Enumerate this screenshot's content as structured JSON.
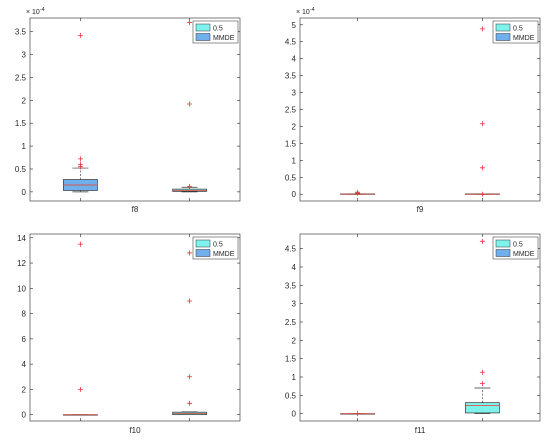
{
  "chart_data": [
    {
      "type": "box",
      "xlabel": "f8",
      "exponent": "× 10^{-4}",
      "ylim": [
        -0.2,
        3.8
      ],
      "yticks": [
        0,
        0.5,
        1,
        1.5,
        2,
        2.5,
        3,
        3.5
      ],
      "ytick_labels": [
        "0",
        "0.5",
        "1",
        "1.5",
        "2",
        "2.5",
        "3",
        "3.5"
      ],
      "legend": [
        {
          "name": "0.5",
          "color": "#7ff2ec"
        },
        {
          "name": "MMDE",
          "color": "#6fb0ec"
        }
      ],
      "boxes": [
        {
          "name": "MMDE",
          "color": "#6fb0ec",
          "q1": 0.03,
          "median": 0.15,
          "q3": 0.27,
          "wmin": 0.0,
          "wmax": 0.52,
          "outliers": [
            0.55,
            0.6,
            0.72,
            3.42
          ]
        },
        {
          "name": "0.5",
          "color": "#7ff2ec",
          "q1": 0.01,
          "median": 0.03,
          "q3": 0.06,
          "wmin": 0.0,
          "wmax": 0.1,
          "outliers": [
            0.12,
            1.92,
            3.7
          ]
        }
      ]
    },
    {
      "type": "box",
      "xlabel": "f9",
      "exponent": "× 10^{-4}",
      "ylim": [
        -0.2,
        5.2
      ],
      "yticks": [
        0,
        0.5,
        1,
        1.5,
        2,
        2.5,
        3,
        3.5,
        4,
        4.5,
        5
      ],
      "ytick_labels": [
        "0",
        "0.5",
        "1",
        "1.5",
        "2",
        "2.5",
        "3",
        "3.5",
        "4",
        "4.5",
        "5"
      ],
      "legend": [
        {
          "name": "0.5",
          "color": "#7ff2ec"
        },
        {
          "name": "MMDE",
          "color": "#6fb0ec"
        }
      ],
      "boxes": [
        {
          "name": "MMDE",
          "color": "#6fb0ec",
          "q1": 0.0,
          "median": 0.0,
          "q3": 0.01,
          "wmin": 0.0,
          "wmax": 0.01,
          "outliers": [
            0.03,
            0.06
          ]
        },
        {
          "name": "0.5",
          "color": "#7ff2ec",
          "q1": 0.0,
          "median": 0.0,
          "q3": 0.01,
          "wmin": 0.0,
          "wmax": 0.01,
          "outliers": [
            0.0,
            0.78,
            2.08,
            4.88
          ]
        }
      ]
    },
    {
      "type": "box",
      "xlabel": "f10",
      "exponent": "",
      "ylim": [
        -0.5,
        14.3
      ],
      "yticks": [
        0,
        2,
        4,
        6,
        8,
        10,
        12,
        14
      ],
      "ytick_labels": [
        "0",
        "2",
        "4",
        "6",
        "8",
        "10",
        "12",
        "14"
      ],
      "legend": [
        {
          "name": "0.5",
          "color": "#7ff2ec"
        },
        {
          "name": "MMDE",
          "color": "#6fb0ec"
        }
      ],
      "boxes": [
        {
          "name": "MMDE",
          "color": "#6fb0ec",
          "q1": 0.0,
          "median": 0.0,
          "q3": 0.0,
          "wmin": 0.0,
          "wmax": 0.0,
          "outliers": [
            2.0,
            13.5
          ]
        },
        {
          "name": "0.5",
          "color": "#7ff2ec",
          "q1": 0.0,
          "median": 0.1,
          "q3": 0.2,
          "wmin": 0.0,
          "wmax": 0.22,
          "outliers": [
            0.9,
            3.0,
            9.0,
            12.8
          ]
        }
      ]
    },
    {
      "type": "box",
      "xlabel": "f11",
      "exponent": "",
      "ylim": [
        -0.2,
        4.9
      ],
      "yticks": [
        0,
        0.5,
        1,
        1.5,
        2,
        2.5,
        3,
        3.5,
        4,
        4.5
      ],
      "ytick_labels": [
        "0",
        "0.5",
        "1",
        "1.5",
        "2",
        "2.5",
        "3",
        "3.5",
        "4",
        "4.5"
      ],
      "legend": [
        {
          "name": "0.5",
          "color": "#7ff2ec"
        },
        {
          "name": "MMDE",
          "color": "#6fb0ec"
        }
      ],
      "boxes": [
        {
          "name": "MMDE",
          "color": "#6fb0ec",
          "q1": 0.0,
          "median": 0.0,
          "q3": 0.0,
          "wmin": 0.0,
          "wmax": 0.0,
          "outliers": [
            0.0
          ]
        },
        {
          "name": "0.5",
          "color": "#7ff2ec",
          "q1": 0.02,
          "median": 0.22,
          "q3": 0.3,
          "wmin": 0.0,
          "wmax": 0.7,
          "outliers": [
            0.82,
            1.13,
            4.7
          ]
        }
      ]
    }
  ]
}
